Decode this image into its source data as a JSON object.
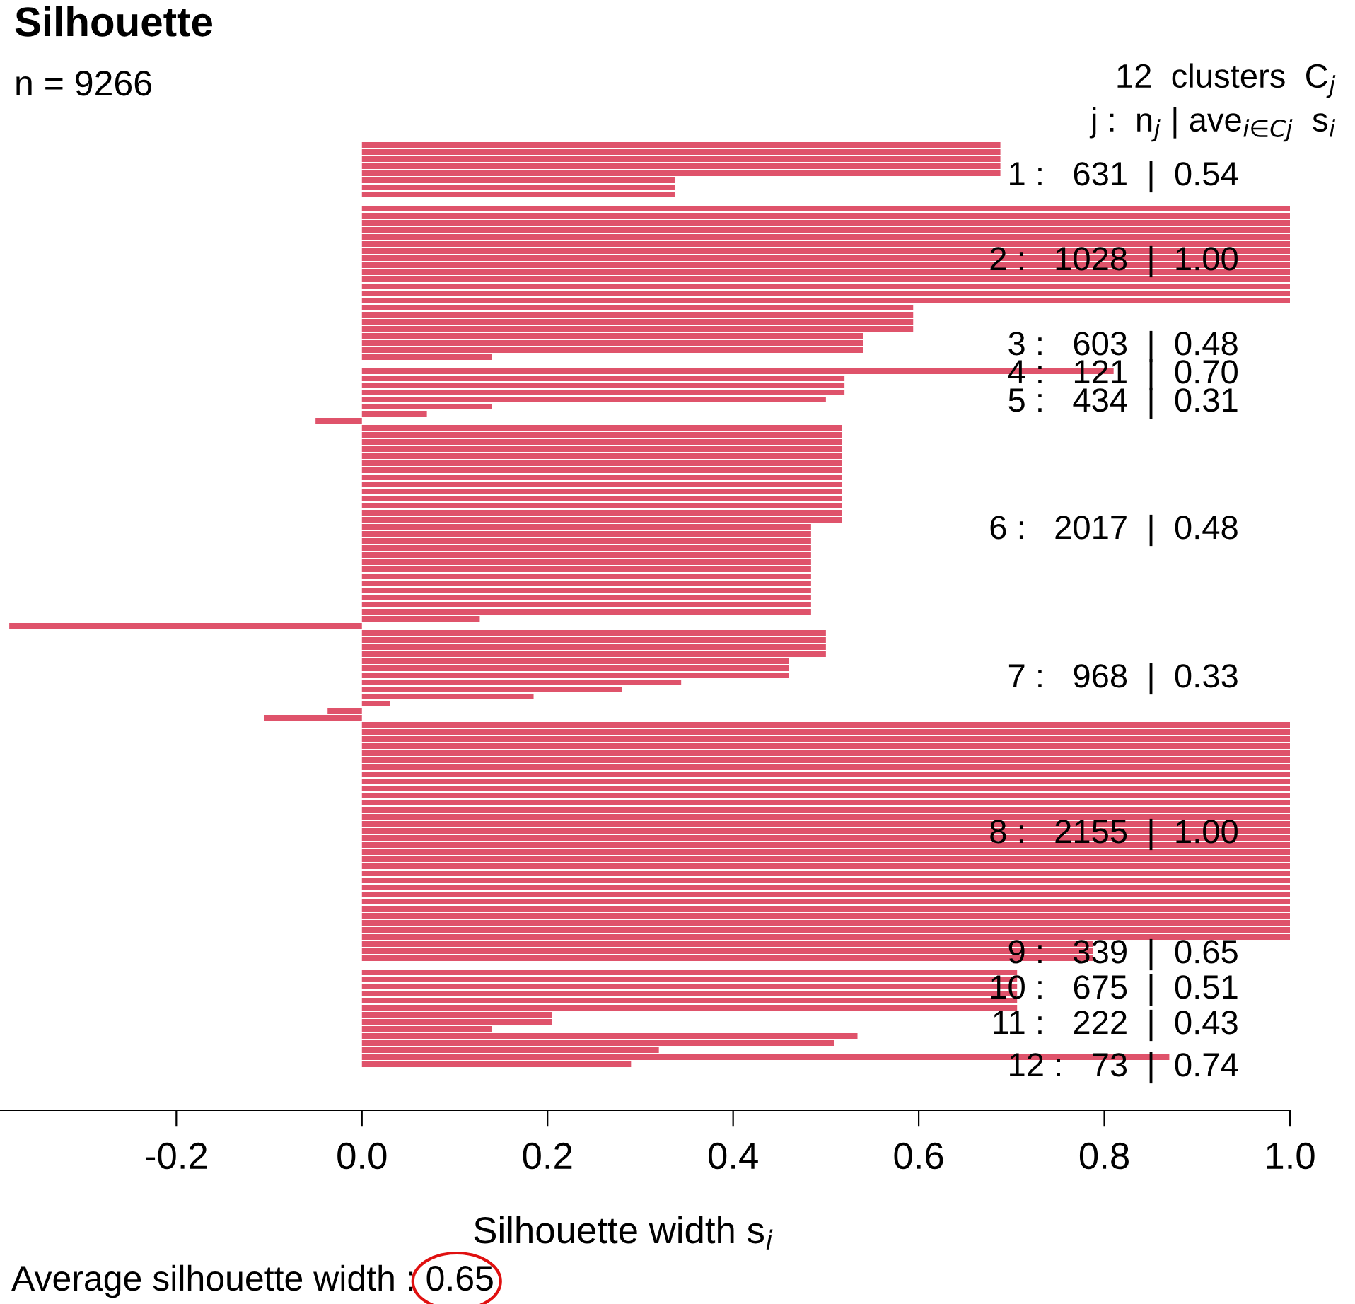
{
  "chart_data": {
    "type": "bar",
    "orientation": "horizontal",
    "title": "Silhouette",
    "subtitle": "n = 9266",
    "xlabel": "Silhouette width s$_{i}$",
    "annotations": [
      "12  clusters  C$_{j}$",
      "j :  n$_{j}$ | ave$_{i∈Cj}$  s$_{i}$",
      "Average silhouette width : 0.65"
    ],
    "color": "#df536b",
    "categories": [
      null,
      null,
      null,
      null,
      "1 :   631  |  0.54",
      null,
      null,
      null,
      null,
      null,
      null,
      null,
      null,
      null,
      null,
      null,
      "2 :   1028  |  1.00",
      null,
      null,
      null,
      null,
      null,
      null,
      null,
      null,
      null,
      null,
      null,
      "3 :   603  |  0.48",
      null,
      null,
      null,
      "4 :   121  |  0.70",
      null,
      null,
      null,
      "5 :   434  |  0.31",
      null,
      null,
      null,
      null,
      null,
      null,
      null,
      null,
      null,
      null,
      null,
      null,
      null,
      null,
      null,
      null,
      null,
      "6 :   2017  |  0.48",
      null,
      null,
      null,
      null,
      null,
      null,
      null,
      null,
      null,
      null,
      null,
      null,
      null,
      null,
      null,
      null,
      null,
      null,
      null,
      null,
      "7 :   968  |  0.33",
      null,
      null,
      null,
      null,
      null,
      null,
      null,
      null,
      null,
      null,
      null,
      null,
      null,
      null,
      null,
      null,
      null,
      null,
      null,
      null,
      null,
      "8 :   2155  |  1.00",
      null,
      null,
      null,
      null,
      null,
      null,
      null,
      null,
      null,
      null,
      null,
      null,
      null,
      null,
      null,
      null,
      "9 :   339  |  0.65",
      null,
      null,
      null,
      null,
      "10 :   675  |  0.51",
      null,
      null,
      null,
      null,
      "11 :   222  |  0.43",
      null,
      null,
      null,
      null,
      null,
      "12 :   73  |  0.74"
    ],
    "values": [
      0.688,
      0.688,
      0.688,
      0.688,
      0.688,
      0.337,
      0.337,
      0.337,
      null,
      1.0,
      1.0,
      1.0,
      1.0,
      1.0,
      1.0,
      1.0,
      1.0,
      1.0,
      1.0,
      1.0,
      1.0,
      1.0,
      1.0,
      0.594,
      0.594,
      0.594,
      0.594,
      0.54,
      0.54,
      0.54,
      0.14,
      null,
      0.81,
      0.52,
      0.52,
      0.52,
      0.5,
      0.14,
      0.07,
      -0.05,
      0.517,
      0.517,
      0.517,
      0.517,
      0.517,
      0.517,
      0.517,
      0.517,
      0.517,
      0.517,
      0.517,
      0.517,
      0.517,
      0.517,
      0.484,
      0.484,
      0.484,
      0.484,
      0.484,
      0.484,
      0.484,
      0.484,
      0.484,
      0.484,
      0.484,
      0.484,
      0.484,
      0.127,
      -0.38,
      0.5,
      0.5,
      0.5,
      0.5,
      0.46,
      0.46,
      0.46,
      0.344,
      0.28,
      0.185,
      0.03,
      -0.037,
      -0.105,
      1.0,
      1.0,
      1.0,
      1.0,
      1.0,
      1.0,
      1.0,
      1.0,
      1.0,
      1.0,
      1.0,
      1.0,
      1.0,
      1.0,
      1.0,
      1.0,
      1.0,
      1.0,
      1.0,
      1.0,
      1.0,
      1.0,
      1.0,
      1.0,
      1.0,
      1.0,
      1.0,
      1.0,
      1.0,
      1.0,
      1.0,
      0.788,
      0.788,
      0.788,
      null,
      0.706,
      0.706,
      0.706,
      0.706,
      0.706,
      0.706,
      0.205,
      0.205,
      0.14,
      0.534,
      0.509,
      0.32,
      0.87,
      0.29
    ],
    "xlim": [
      -0.39,
      1.0
    ],
    "xticks": [
      -0.2,
      {
        "value": 0,
        "label": "0.0"
      },
      0.2,
      0.4,
      0.6,
      0.8,
      {
        "value": 1,
        "label": "1.0"
      }
    ]
  }
}
